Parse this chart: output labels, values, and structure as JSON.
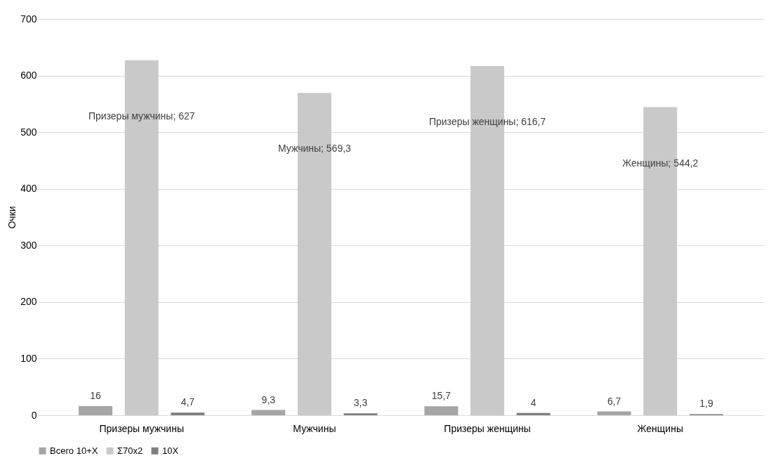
{
  "chart_data": {
    "type": "bar",
    "ylabel": "Очки",
    "categories": [
      "Призеры мужчины",
      "Мужчины",
      "Призеры женщины",
      "Женщины"
    ],
    "series": [
      {
        "name": "Всего 10+X",
        "color": "#a5a5a5",
        "values": [
          16,
          9.3,
          15.7,
          6.7
        ],
        "value_labels": [
          "16",
          "9,3",
          "15,7",
          "6,7"
        ]
      },
      {
        "name": "Σ70x2",
        "color": "#c9c9c9",
        "values": [
          627,
          569.3,
          616.7,
          544.2
        ],
        "value_labels": [
          "Призеры мужчины; 627",
          "Мужчины; 569,3",
          "Призеры женщины; 616,7",
          "Женщины; 544,2"
        ]
      },
      {
        "name": "10X",
        "color": "#7f7f7f",
        "values": [
          4.7,
          3.3,
          4,
          1.9
        ],
        "value_labels": [
          "4,7",
          "3,3",
          "4",
          "1,9"
        ]
      }
    ],
    "ylim": [
      0,
      700
    ],
    "yticks": [
      0,
      100,
      200,
      300,
      400,
      500,
      600,
      700
    ],
    "grid": "y",
    "legend": "bottom"
  }
}
